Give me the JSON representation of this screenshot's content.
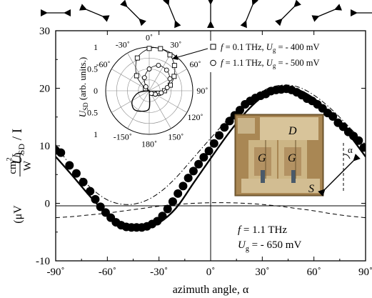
{
  "chart_data": {
    "type": "scatter",
    "xlabel": "azimuth angle, α",
    "ylabel_main": "U",
    "ylabel_sub": "SD",
    "ylabel_rest": " / I",
    "ylabel_unit_open": "(μV",
    "ylabel_unit_num": "cm",
    "ylabel_unit_num_sup": "2",
    "ylabel_unit_den": "W",
    "ylabel_unit_close": ")",
    "xlim": [
      -90,
      90
    ],
    "ylim": [
      -10,
      30
    ],
    "x_ticks": [
      -90,
      -60,
      -30,
      0,
      30,
      60,
      90
    ],
    "x_tick_labels": [
      "-90˚",
      "-60˚",
      "-30˚",
      "0˚",
      "30˚",
      "60˚",
      "90˚"
    ],
    "y_ticks": [
      -10,
      0,
      10,
      20,
      30
    ],
    "y_tick_labels": [
      "-10",
      "0",
      "10",
      "20",
      "30"
    ],
    "polarization_arrow_angles": [
      -90,
      -67.5,
      -45,
      -22.5,
      0,
      22.5,
      45,
      67.5,
      90
    ],
    "series": [
      {
        "style": "filled-circles",
        "x": [
          -90,
          -87,
          -82,
          -78,
          -74,
          -70,
          -67,
          -64,
          -61,
          -58,
          -55,
          -52,
          -49,
          -46,
          -43,
          -40,
          -37,
          -34,
          -31,
          -28,
          -25,
          -22,
          -19,
          -16,
          -13,
          -10,
          -7,
          -4,
          -1,
          2,
          5,
          8,
          11,
          14,
          17,
          20,
          23,
          26,
          29,
          32,
          35,
          38,
          41,
          44,
          47,
          50,
          53,
          56,
          59,
          62,
          65,
          68,
          71,
          74,
          77,
          80,
          83,
          86,
          89
        ],
        "y": [
          9.2,
          8.8,
          6.6,
          5.2,
          3.7,
          2.1,
          0.7,
          -0.6,
          -1.6,
          -2.5,
          -3.3,
          -3.8,
          -4.1,
          -4.2,
          -4.2,
          -4.2,
          -4.0,
          -3.6,
          -3.1,
          -2.2,
          -1.0,
          0.3,
          1.7,
          3.0,
          4.4,
          5.6,
          6.8,
          8.0,
          9.1,
          10.4,
          11.8,
          13.2,
          14.3,
          15.3,
          16.2,
          17.2,
          17.8,
          18.3,
          18.7,
          19.0,
          19.5,
          19.7,
          19.8,
          19.9,
          19.7,
          19.3,
          18.8,
          18.2,
          17.8,
          17.2,
          16.5,
          15.7,
          15.1,
          14.0,
          13.3,
          12.4,
          11.7,
          10.9,
          9.7
        ]
      },
      {
        "style": "solid-line-fit",
        "x": [
          -90,
          -80,
          -70,
          -60,
          -50,
          -40,
          -30,
          -20,
          -10,
          0,
          10,
          20,
          30,
          40,
          50,
          60,
          70,
          80,
          90
        ],
        "y": [
          8.1,
          4.7,
          1.2,
          -1.9,
          -4.0,
          -4.5,
          -3.4,
          -0.8,
          3.5,
          7.8,
          12.0,
          15.7,
          18.5,
          19.9,
          19.8,
          18.2,
          15.5,
          12.1,
          8.1
        ]
      },
      {
        "style": "dash-dot-line",
        "x": [
          -90,
          -80,
          -70,
          -60,
          -50,
          -40,
          -30,
          -20,
          -10,
          0,
          10,
          20,
          30,
          40,
          50,
          60,
          70,
          80,
          90
        ],
        "y": [
          10.2,
          6.0,
          2.8,
          0.6,
          -0.2,
          0.2,
          1.8,
          4.5,
          7.9,
          11.3,
          14.6,
          17.4,
          19.5,
          20.5,
          20.3,
          18.8,
          16.4,
          13.4,
          10.2
        ]
      },
      {
        "style": "dashed-line",
        "x": [
          -90,
          -80,
          -70,
          -60,
          -50,
          -40,
          -30,
          -20,
          -10,
          0,
          10,
          20,
          30,
          40,
          50,
          60,
          70,
          80,
          90
        ],
        "y": [
          -2.5,
          -2.3,
          -2.0,
          -1.7,
          -1.3,
          -0.9,
          -0.5,
          -0.2,
          0.0,
          0.1,
          0.1,
          0.0,
          -0.2,
          -0.5,
          -0.9,
          -1.3,
          -1.8,
          -2.2,
          -2.5
        ]
      }
    ],
    "annotation": {
      "line1_prefix": "f",
      "line1_rest": " = 1.1 THz",
      "line2_main": "U",
      "line2_sub": "g",
      "line2_rest": " = - 650 mV"
    },
    "legend": {
      "placement": "top-right",
      "entries": [
        {
          "marker": "□",
          "f_label": "f",
          "f_value": " = 0.1 THz, ",
          "u_label": "U",
          "u_sub": "g",
          "u_value": " = - 400 mV"
        },
        {
          "marker": "○",
          "f_label": "f",
          "f_value": " = 1.1 THz, ",
          "u_label": "U",
          "u_sub": "g",
          "u_value": " = - 500 mV"
        }
      ]
    },
    "inset_polar": {
      "type": "polar",
      "ylabel_main": "U",
      "ylabel_sub": "SD",
      "ylabel_rest": " (arb. units.)",
      "angle_labels": [
        "0˚",
        "30˚",
        "60˚",
        "90˚",
        "120˚",
        "150˚",
        "180˚",
        "-150˚",
        "-60˚",
        "-30˚"
      ],
      "radial_tick_labels_upper": [
        "1",
        "0.5",
        "0"
      ],
      "radial_tick_labels_lower": [
        "0.5",
        "1"
      ],
      "series": [
        {
          "style": "open-squares",
          "f_thz": 0.1,
          "ug_mv": -400,
          "theta_deg": [
            -60,
            -40,
            -20,
            0,
            15,
            30,
            45,
            60,
            75,
            90,
            105,
            120
          ],
          "r": [
            0.1,
            0.45,
            0.8,
            0.97,
            1.0,
            0.95,
            0.82,
            0.66,
            0.5,
            0.35,
            0.22,
            0.12
          ]
        },
        {
          "style": "open-circles",
          "f_thz": 1.1,
          "ug_mv": -500,
          "theta_deg": [
            -40,
            -20,
            0,
            20,
            40,
            60,
            80,
            100,
            120,
            140
          ],
          "r": [
            0.12,
            0.32,
            0.5,
            0.62,
            0.62,
            0.55,
            0.42,
            0.28,
            0.16,
            0.08
          ]
        },
        {
          "style": "solid-line",
          "theta_deg": [
            -180,
            -160,
            -140,
            -120,
            -100
          ],
          "r": [
            0.4,
            0.5,
            0.55,
            0.45,
            0.25
          ]
        }
      ]
    },
    "inset_photo": {
      "labels": [
        "D",
        "G",
        "G",
        "S"
      ],
      "angle_label": "α"
    }
  }
}
